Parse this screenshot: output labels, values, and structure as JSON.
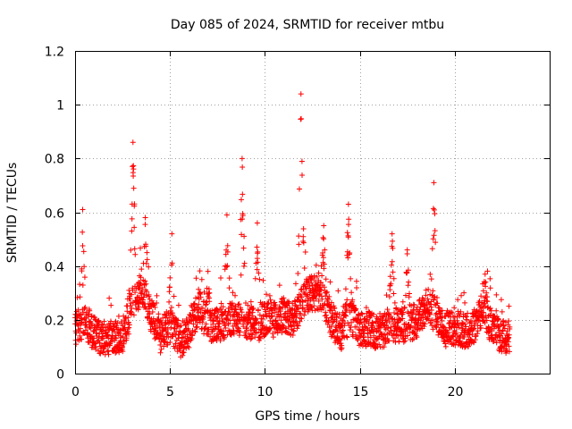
{
  "chart_data": {
    "type": "scatter",
    "title": "Day 085 of 2024, SRMTID for receiver mtbu",
    "xlabel": "GPS time / hours",
    "ylabel": "SRMTID / TECUs",
    "xlim": [
      0,
      25
    ],
    "ylim": [
      0,
      1.2
    ],
    "x_ticks": [
      0,
      5,
      10,
      15,
      20
    ],
    "x_tick_labels": [
      "0",
      "5",
      "10",
      "15",
      "20"
    ],
    "y_ticks": [
      0,
      0.2,
      0.4,
      0.6,
      0.8,
      1.0,
      1.2
    ],
    "y_tick_labels": [
      "0",
      "0.2",
      "0.4",
      "0.6",
      "0.8",
      "1",
      "1.2"
    ],
    "grid": true,
    "marker": "plus",
    "color": "#ff0000",
    "series": [
      {
        "name": "SRMTID",
        "baseline": [
          [
            0.0,
            0.16
          ],
          [
            0.5,
            0.2
          ],
          [
            1.0,
            0.15
          ],
          [
            1.5,
            0.13
          ],
          [
            2.0,
            0.14
          ],
          [
            2.5,
            0.14
          ],
          [
            3.0,
            0.25
          ],
          [
            3.5,
            0.33
          ],
          [
            4.0,
            0.22
          ],
          [
            4.5,
            0.14
          ],
          [
            5.0,
            0.18
          ],
          [
            5.5,
            0.12
          ],
          [
            6.0,
            0.15
          ],
          [
            6.5,
            0.25
          ],
          [
            7.0,
            0.18
          ],
          [
            7.5,
            0.18
          ],
          [
            8.0,
            0.2
          ],
          [
            8.5,
            0.2
          ],
          [
            9.0,
            0.2
          ],
          [
            9.5,
            0.18
          ],
          [
            10.0,
            0.2
          ],
          [
            10.5,
            0.2
          ],
          [
            11.0,
            0.22
          ],
          [
            11.5,
            0.2
          ],
          [
            12.0,
            0.28
          ],
          [
            12.5,
            0.3
          ],
          [
            13.0,
            0.3
          ],
          [
            13.5,
            0.2
          ],
          [
            14.0,
            0.15
          ],
          [
            14.5,
            0.22
          ],
          [
            15.0,
            0.15
          ],
          [
            15.5,
            0.17
          ],
          [
            16.0,
            0.14
          ],
          [
            16.5,
            0.18
          ],
          [
            17.0,
            0.18
          ],
          [
            17.5,
            0.18
          ],
          [
            18.0,
            0.2
          ],
          [
            18.5,
            0.25
          ],
          [
            19.0,
            0.22
          ],
          [
            19.5,
            0.16
          ],
          [
            20.0,
            0.17
          ],
          [
            20.5,
            0.16
          ],
          [
            21.0,
            0.17
          ],
          [
            21.5,
            0.25
          ],
          [
            22.0,
            0.16
          ],
          [
            22.5,
            0.14
          ],
          [
            22.8,
            0.14
          ]
        ],
        "peaks": [
          {
            "x": 0.4,
            "y": 0.61
          },
          {
            "x": 3.05,
            "y": 0.86
          },
          {
            "x": 3.7,
            "y": 0.58
          },
          {
            "x": 5.1,
            "y": 0.52
          },
          {
            "x": 7.0,
            "y": 0.38
          },
          {
            "x": 8.0,
            "y": 0.59
          },
          {
            "x": 8.8,
            "y": 0.8
          },
          {
            "x": 9.6,
            "y": 0.56
          },
          {
            "x": 11.9,
            "y": 1.04
          },
          {
            "x": 13.1,
            "y": 0.55
          },
          {
            "x": 14.4,
            "y": 0.63
          },
          {
            "x": 16.7,
            "y": 0.52
          },
          {
            "x": 17.5,
            "y": 0.46
          },
          {
            "x": 18.9,
            "y": 0.71
          },
          {
            "x": 21.6,
            "y": 0.37
          }
        ],
        "x_range": [
          0,
          22.9
        ],
        "point_count": 2400
      }
    ]
  }
}
